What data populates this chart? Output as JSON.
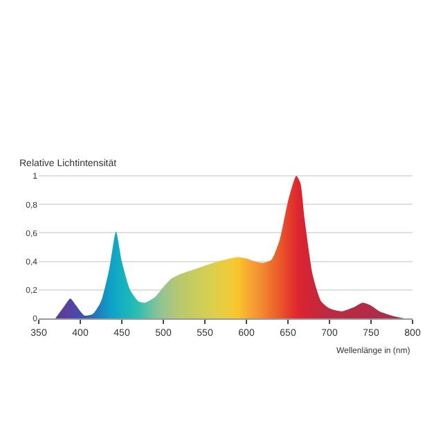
{
  "chart_data": {
    "type": "area",
    "ylabel": "Relative Lichtintensität",
    "xlabel": "Wellenlänge in (nm)",
    "x": [
      370,
      380,
      388,
      395,
      405,
      415,
      425,
      435,
      443,
      450,
      460,
      470,
      478,
      490,
      500,
      510,
      520,
      540,
      560,
      580,
      590,
      600,
      610,
      620,
      630,
      640,
      650,
      660,
      665,
      670,
      680,
      690,
      700,
      715,
      730,
      740,
      750,
      760,
      775,
      790
    ],
    "series": [
      {
        "values": [
          0,
          0.08,
          0.14,
          0.09,
          0.02,
          0.03,
          0.12,
          0.35,
          0.61,
          0.4,
          0.2,
          0.12,
          0.11,
          0.15,
          0.22,
          0.28,
          0.31,
          0.35,
          0.39,
          0.42,
          0.43,
          0.42,
          0.4,
          0.39,
          0.41,
          0.55,
          0.82,
          1.0,
          0.95,
          0.7,
          0.3,
          0.12,
          0.07,
          0.05,
          0.08,
          0.11,
          0.09,
          0.05,
          0.02,
          0
        ],
        "colors": [
          "#4b3f9a",
          "#5a3fa0",
          "#56429f",
          "#4a4aa8",
          "#3a55b0",
          "#2a6cb8",
          "#1a86c0",
          "#0f9ec6",
          "#10a8c4",
          "#14b0bf",
          "#1db8b8",
          "#2fbfb0",
          "#4fc0a8",
          "#7cc39a",
          "#98c58e",
          "#a9c67f",
          "#b8c86c",
          "#c9cd5c",
          "#dcd04c",
          "#efcb3a",
          "#f7c62c",
          "#f7ad30",
          "#f49a34",
          "#f2872f",
          "#ee6e2c",
          "#ea5a2a",
          "#e6402a",
          "#e02a2e",
          "#da2531",
          "#d52535",
          "#cc2638",
          "#c3283d",
          "#bd2a42",
          "#b72b44",
          "#b52b46",
          "#b32b47",
          "#b02c48",
          "#ad2d49",
          "#aa2e4a",
          "#a82e4a"
        ]
      }
    ],
    "xlim": [
      350,
      800
    ],
    "xticks": [
      350,
      400,
      450,
      500,
      550,
      600,
      650,
      700,
      750,
      800
    ],
    "ylim": [
      0,
      1.02
    ],
    "yticks": [
      0,
      {
        "value": 0.2,
        "label": "0,2"
      },
      {
        "value": 0.4,
        "label": "0,4"
      },
      {
        "value": 0.6,
        "label": "0,6"
      },
      {
        "value": 0.8,
        "label": "0,8"
      },
      1
    ],
    "grid": "y"
  }
}
